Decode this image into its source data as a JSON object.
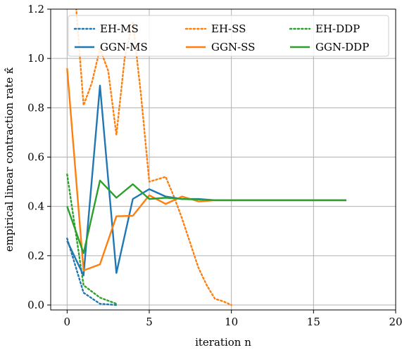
{
  "chart_data": {
    "type": "line",
    "title": "",
    "xlabel": "iteration n",
    "ylabel": "empirical linear contraction rate κ̂",
    "xlim": [
      -1,
      20
    ],
    "ylim": [
      -0.02,
      1.2
    ],
    "xticks": [
      0,
      5,
      10,
      15,
      20
    ],
    "yticks": [
      0.0,
      0.2,
      0.4,
      0.6,
      0.8,
      1.0,
      1.2
    ],
    "ytick_labels": [
      "0.0",
      "0.2",
      "0.4",
      "0.6",
      "0.8",
      "1.0",
      "1.2"
    ],
    "grid": true,
    "legend_position": "top",
    "series": [
      {
        "name": "EH-MS",
        "color": "#1f77b4",
        "style": "dotted",
        "x": [
          0,
          1,
          2,
          3
        ],
        "y": [
          0.27,
          0.05,
          0.005,
          0.0
        ]
      },
      {
        "name": "EH-SS",
        "color": "#ff7f0e",
        "style": "dotted",
        "x": [
          0,
          0.5,
          1,
          1.5,
          2,
          2.5,
          3,
          3.5,
          4,
          4.5,
          5,
          5.5,
          6,
          6.5,
          7,
          7.5,
          8,
          8.5,
          9,
          9.5,
          10
        ],
        "y": [
          1.4,
          1.25,
          0.81,
          0.9,
          1.04,
          0.95,
          0.69,
          1.0,
          1.15,
          0.85,
          0.5,
          0.51,
          0.52,
          0.44,
          0.35,
          0.25,
          0.15,
          0.08,
          0.025,
          0.015,
          0.0
        ]
      },
      {
        "name": "EH-DDP",
        "color": "#2ca02c",
        "style": "dotted",
        "x": [
          0,
          1,
          2,
          3
        ],
        "y": [
          0.53,
          0.08,
          0.03,
          0.005
        ]
      },
      {
        "name": "GGN-MS",
        "color": "#1f77b4",
        "style": "solid",
        "x": [
          0,
          1,
          2,
          3,
          4,
          5,
          6,
          7,
          8,
          9,
          10,
          11,
          12,
          13,
          14,
          15,
          16,
          17
        ],
        "y": [
          0.26,
          0.12,
          0.89,
          0.13,
          0.43,
          0.47,
          0.44,
          0.43,
          0.43,
          0.425,
          0.425,
          0.425,
          0.425,
          0.425,
          0.425,
          0.425,
          0.425,
          0.425
        ]
      },
      {
        "name": "GGN-SS",
        "color": "#ff7f0e",
        "style": "solid",
        "x": [
          0,
          1,
          2,
          3,
          4,
          5,
          6,
          7,
          8,
          9,
          10,
          11,
          12,
          13,
          14,
          15,
          16,
          17
        ],
        "y": [
          0.96,
          0.14,
          0.165,
          0.36,
          0.362,
          0.445,
          0.41,
          0.44,
          0.42,
          0.425,
          0.425,
          0.425,
          0.425,
          0.425,
          0.425,
          0.425,
          0.425,
          0.425
        ]
      },
      {
        "name": "GGN-DDP",
        "color": "#2ca02c",
        "style": "solid",
        "x": [
          0,
          1,
          2,
          3,
          4,
          5,
          6,
          7,
          8,
          9,
          10,
          11,
          12,
          13,
          14,
          15,
          16,
          17
        ],
        "y": [
          0.4,
          0.21,
          0.505,
          0.435,
          0.49,
          0.43,
          0.435,
          0.43,
          0.428,
          0.425,
          0.425,
          0.425,
          0.425,
          0.425,
          0.425,
          0.425,
          0.425,
          0.425
        ]
      }
    ]
  }
}
